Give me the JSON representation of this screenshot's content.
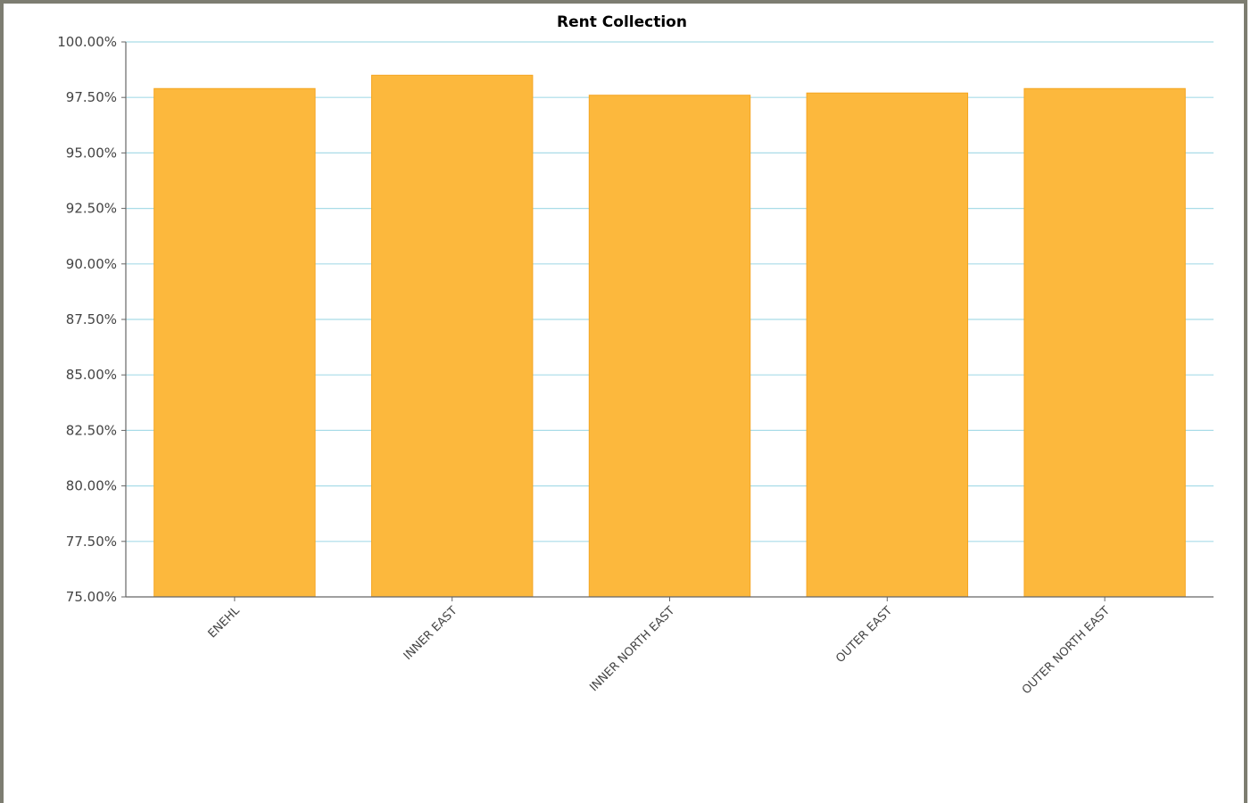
{
  "chart_data": {
    "type": "bar",
    "title": "Rent Collection",
    "xlabel": "",
    "ylabel": "",
    "categories": [
      "ENEHL",
      "INNER EAST",
      "INNER NORTH EAST",
      "OUTER EAST",
      "OUTER NORTH EAST"
    ],
    "values": [
      97.9,
      98.5,
      97.6,
      97.7,
      97.9
    ],
    "ylim": [
      75,
      100
    ],
    "yticks": [
      "75.00%",
      "77.50%",
      "80.00%",
      "82.50%",
      "85.00%",
      "87.50%",
      "90.00%",
      "92.50%",
      "95.00%",
      "97.50%",
      "100.00%"
    ],
    "grid": true,
    "legend": "none",
    "colors": {
      "bar": "#fcb83d",
      "bar_edge": "#f5a623",
      "grid": "#a9dce8",
      "axis": "#666666",
      "frame": "#7d7d71"
    }
  }
}
